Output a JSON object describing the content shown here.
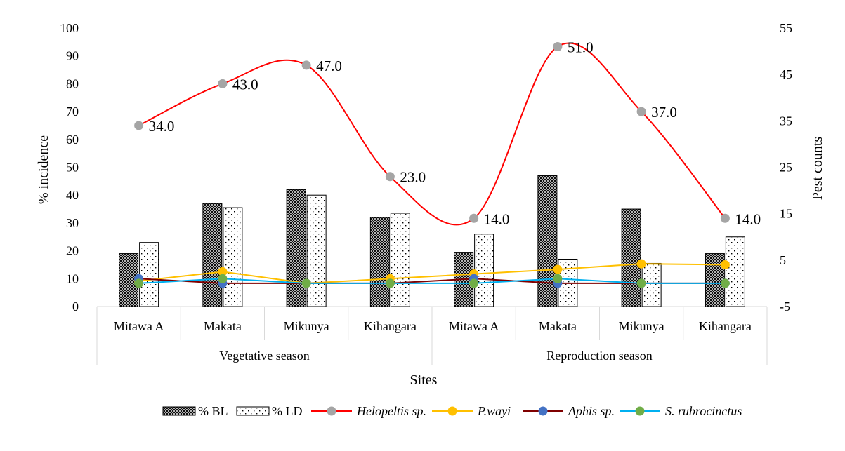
{
  "chart_data": {
    "type": "bar+line combo",
    "xlabel": "Sites",
    "ylabel_left": "% incidence",
    "ylabel_right": "Pest counts",
    "ylim_left": [
      0,
      100
    ],
    "yticks_left": [
      "0",
      "10",
      "20",
      "30",
      "40",
      "50",
      "60",
      "70",
      "80",
      "90",
      "100"
    ],
    "ylim_right": [
      -5,
      55
    ],
    "yticks_right": [
      "-5",
      "5",
      "15",
      "25",
      "35",
      "45",
      "55"
    ],
    "categories": [
      "Mitawa A",
      "Makata",
      "Mikunya",
      "Kihangara",
      "Mitawa A",
      "Makata",
      "Mikunya",
      "Kihangara"
    ],
    "groups": [
      {
        "label": "Vegetative season",
        "span": [
          0,
          3
        ]
      },
      {
        "label": "Reproduction season",
        "span": [
          4,
          7
        ]
      }
    ],
    "bar_series": [
      {
        "name": "% BL",
        "axis": "left",
        "pattern": "crosshatch",
        "values": [
          19,
          37,
          42,
          32,
          19.5,
          47,
          35,
          19
        ]
      },
      {
        "name": "% LD",
        "axis": "left",
        "pattern": "dots",
        "values": [
          23,
          35.5,
          40,
          33.5,
          26,
          17,
          15.5,
          25
        ]
      }
    ],
    "line_series": [
      {
        "name": "Helopeltis sp.",
        "axis": "right",
        "color": "#ff0000",
        "marker_color": "#a5a5a5",
        "smooth": true,
        "values": [
          34,
          43,
          47,
          23,
          14,
          51,
          37,
          14
        ],
        "data_labels": [
          "34.0",
          "43.0",
          "47.0",
          "23.0",
          "14.0",
          "51.0",
          "37.0",
          "14.0"
        ]
      },
      {
        "name": "P.wayi",
        "axis": "right",
        "color": "#ffc000",
        "marker_color": "#ffc000",
        "values": [
          0.5,
          2.5,
          0,
          1,
          2,
          3,
          4.2,
          4
        ]
      },
      {
        "name": "Aphis sp.",
        "axis": "right",
        "color": "#7f0000",
        "marker_color": "#4472c4",
        "values": [
          1,
          0,
          0,
          0,
          1,
          0,
          0,
          0
        ]
      },
      {
        "name": "S. rubrocinctus",
        "axis": "right",
        "color": "#00b0f0",
        "marker_color": "#70ad47",
        "values": [
          0,
          1,
          0,
          0,
          0,
          1,
          0,
          0
        ]
      }
    ],
    "legend": [
      "% BL",
      "% LD",
      "Helopeltis sp.",
      "P.wayi",
      "Aphis sp.",
      "S. rubrocinctus"
    ],
    "legend_position": "bottom",
    "grid": false
  }
}
